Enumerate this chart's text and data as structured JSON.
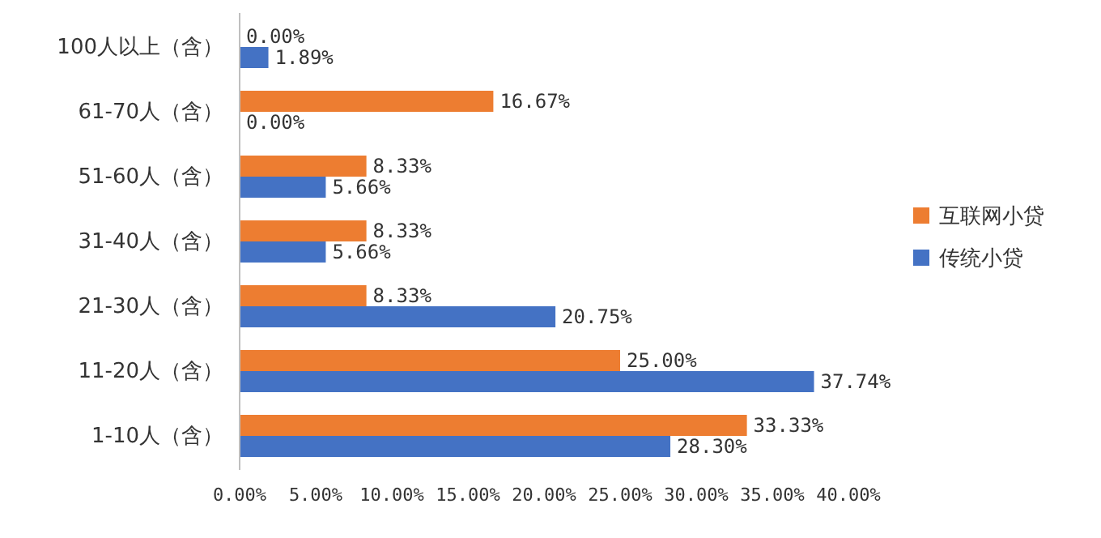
{
  "chart_data": {
    "type": "bar",
    "orientation": "horizontal",
    "categories": [
      "100人以上（含）",
      "61-70人（含）",
      "51-60人（含）",
      "31-40人（含）",
      "21-30人（含）",
      "11-20人（含）",
      "1-10人（含）"
    ],
    "series": [
      {
        "name": "互联网小贷",
        "color": "#ed7d31",
        "values": [
          0,
          16.67,
          8.33,
          8.33,
          8.33,
          25.0,
          33.33
        ],
        "value_labels": [
          "0.00%",
          "16.67%",
          "8.33%",
          "8.33%",
          "8.33%",
          "25.00%",
          "33.33%"
        ]
      },
      {
        "name": "传统小贷",
        "color": "#4472c4",
        "values": [
          1.89,
          0,
          5.66,
          5.66,
          20.75,
          37.74,
          28.3
        ],
        "value_labels": [
          "1.89%",
          "0.00%",
          "5.66%",
          "5.66%",
          "20.75%",
          "37.74%",
          "28.30%"
        ]
      }
    ],
    "xlim": [
      0,
      40
    ],
    "xticks": [
      {
        "value": 0,
        "label": "0.00%"
      },
      {
        "value": 5,
        "label": "5.00%"
      },
      {
        "value": 10,
        "label": "10.00%"
      },
      {
        "value": 15,
        "label": "15.00%"
      },
      {
        "value": 20,
        "label": "20.00%"
      },
      {
        "value": 25,
        "label": "25.00%"
      },
      {
        "value": 30,
        "label": "30.00%"
      },
      {
        "value": 35,
        "label": "35.00%"
      },
      {
        "value": 40,
        "label": "40.00%"
      }
    ],
    "legend": "right",
    "grid": false
  }
}
